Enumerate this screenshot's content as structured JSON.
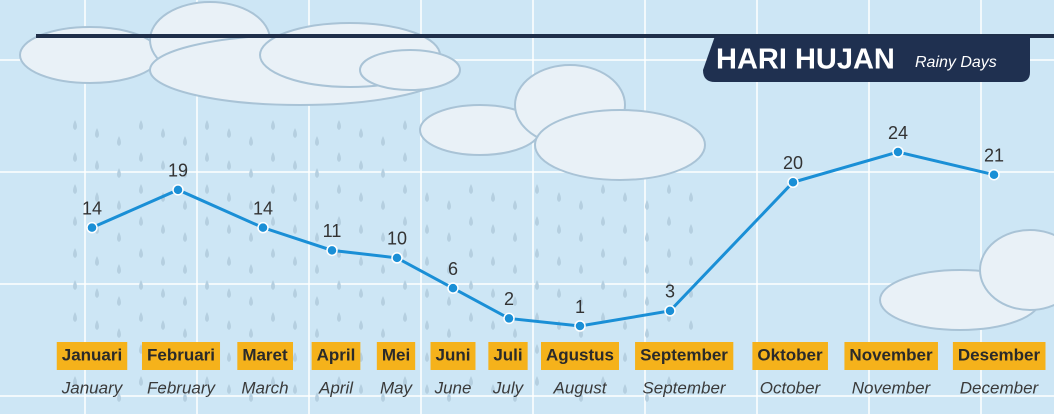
{
  "chart_data": {
    "type": "line",
    "title": "HARI HUJAN",
    "subtitle": "Rainy Days",
    "categories": [
      "Januari",
      "Februari",
      "Maret",
      "April",
      "Mei",
      "Juni",
      "Juli",
      "Agustus",
      "September",
      "Oktober",
      "November",
      "Desember"
    ],
    "categories_en": [
      "January",
      "February",
      "March",
      "April",
      "May",
      "June",
      "July",
      "August",
      "September",
      "October",
      "November",
      "December"
    ],
    "values": [
      14,
      19,
      14,
      11,
      10,
      6,
      2,
      1,
      3,
      20,
      24,
      21
    ],
    "color": "#1a8fd6"
  }
}
